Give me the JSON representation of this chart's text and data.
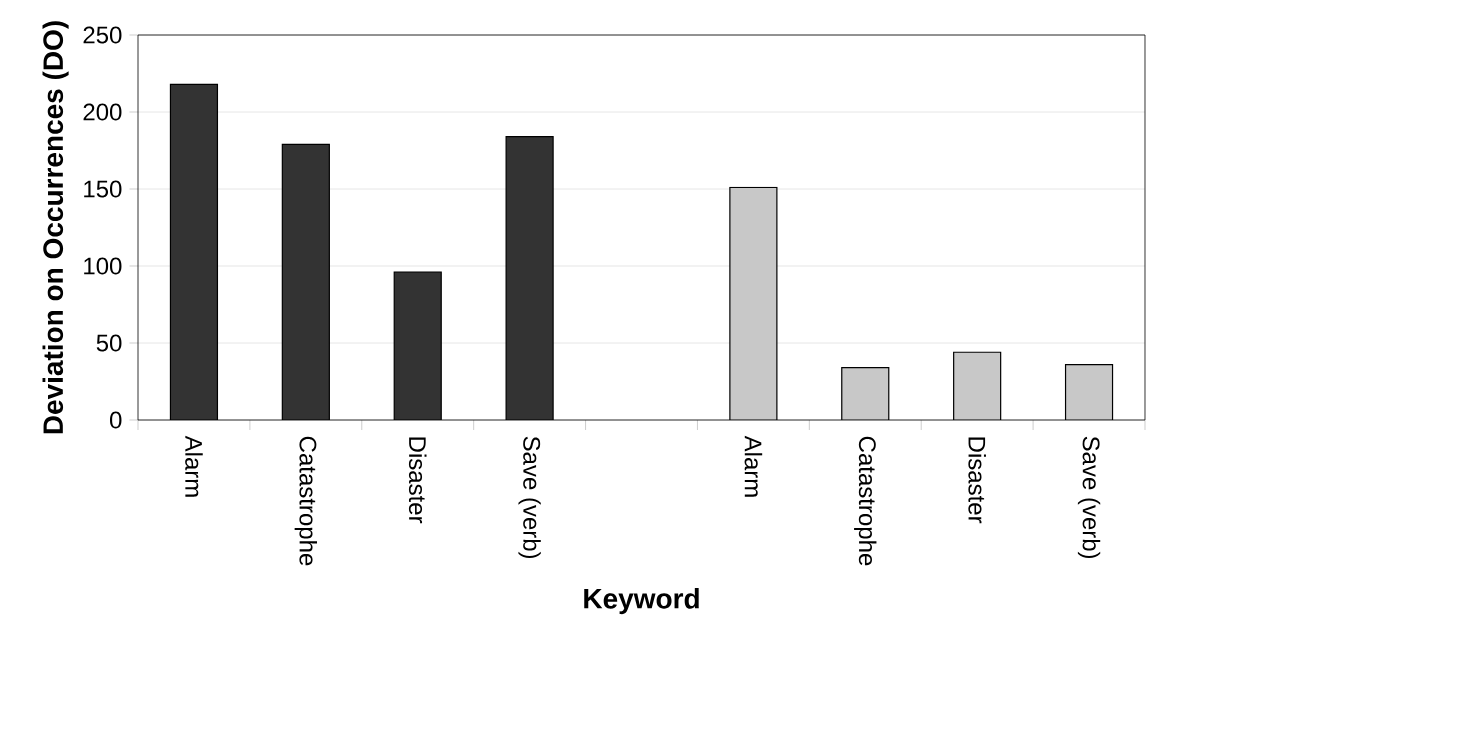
{
  "chart_data": {
    "type": "bar",
    "xlabel": "Keyword",
    "ylabel": "Deviation on Occurrences (DO)",
    "categories": [
      "Alarm",
      "Catastrophe",
      "Disaster",
      "Save (verb)",
      null,
      "Alarm",
      "Catastrophe",
      "Disaster",
      "Save (verb)"
    ],
    "series": [
      {
        "color": "#333333",
        "values": [
          218,
          179,
          96,
          184,
          null,
          null,
          null,
          null,
          null
        ]
      },
      {
        "color": "#c8c8c8",
        "values": [
          null,
          null,
          null,
          null,
          null,
          151,
          34,
          44,
          36
        ]
      }
    ],
    "ylim": [
      0,
      250
    ],
    "yticks": [
      0,
      50,
      100,
      150,
      200,
      250
    ],
    "grid": "y"
  }
}
